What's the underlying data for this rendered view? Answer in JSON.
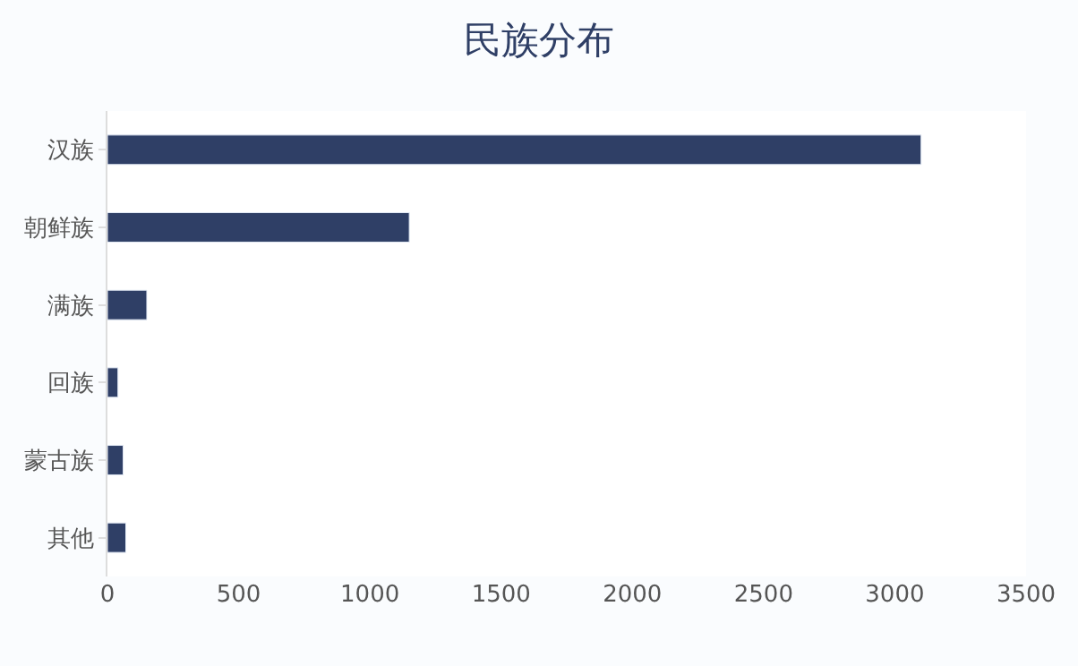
{
  "chart_data": {
    "type": "bar",
    "orientation": "horizontal",
    "title": "民族分布",
    "categories": [
      "汉族",
      "朝鲜族",
      "满族",
      "回族",
      "蒙古族",
      "其他"
    ],
    "values": [
      3100,
      1150,
      150,
      40,
      60,
      70
    ],
    "color": "#2f3f66",
    "xlim": [
      0,
      3500
    ],
    "xticks": [
      0,
      500,
      1000,
      1500,
      2000,
      2500,
      3000,
      3500
    ],
    "legend": false
  }
}
